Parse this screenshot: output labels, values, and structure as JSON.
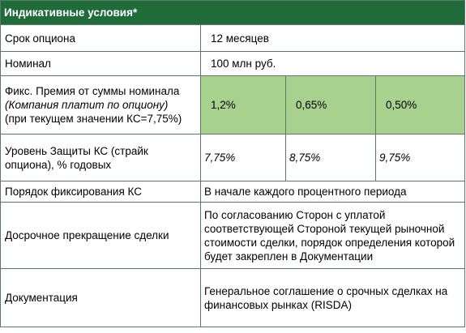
{
  "header": {
    "title": "Индикативные условия*"
  },
  "rows": {
    "term": {
      "label": "Срок опциона",
      "value": "12 месяцев"
    },
    "nominal": {
      "label": "Номинал",
      "value": "100 млн руб."
    },
    "premium": {
      "label_line1": "Фикс. Премия от суммы номинала",
      "label_line2": "(Компания платит по опциону)",
      "label_line3": "(при текущем значении КС=7,75%)",
      "values": [
        "1,2%",
        "0,65%",
        "0,50%"
      ]
    },
    "protection": {
      "label": "Уровень Защиты КС (страйк опциона), % годовых",
      "values": [
        "7,75%",
        "8,75%",
        "9,75%"
      ]
    },
    "fixing": {
      "label": "Порядок фиксирования КС",
      "value": "В начале каждого процентного периода"
    },
    "early_termination": {
      "label": "Досрочное прекращение сделки",
      "value": "По согласованию Сторон с уплатой соответствующей Стороной текущей рыночной стоимости сделки, порядок определения которой будет закреплен в Документации"
    },
    "documentation": {
      "label": "Документация",
      "value": "Генеральное соглашение о срочных сделках на финансовых рынках (RISDA)"
    }
  },
  "colors": {
    "header_bg": "#1f6b3a",
    "highlight_bg": "#a9d18e",
    "border": "#5a7a65"
  }
}
